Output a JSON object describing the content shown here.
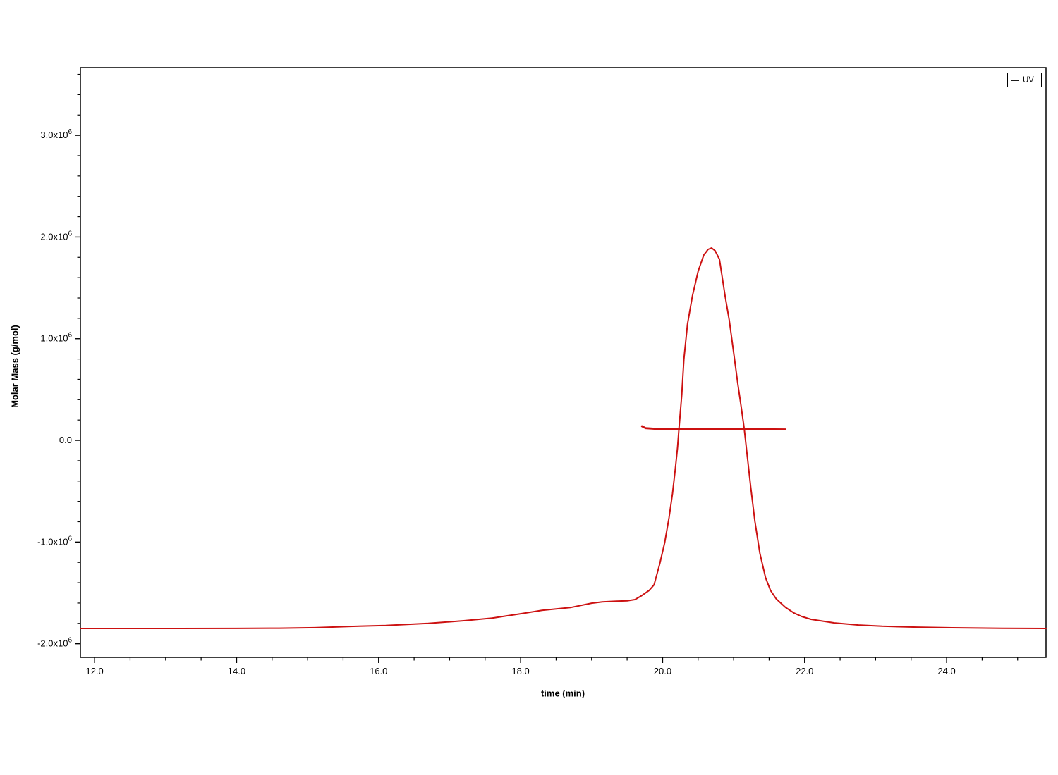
{
  "chart_data": {
    "type": "line",
    "title": "",
    "xlabel": "time (min)",
    "ylabel": "Molar Mass (g/mol)",
    "grid": false,
    "background_color": "#ffffff",
    "axis_color": "#000000",
    "legend_position": "top-right",
    "legend_entries": [
      {
        "label": "UV",
        "line_color": "#1a1a1a"
      }
    ],
    "xlim": [
      11.8,
      25.4
    ],
    "y_scale": 1000000,
    "ylim_millions": [
      -2.134,
      3.666
    ],
    "x_major_ticks": [
      {
        "v": 12,
        "label": "12.0"
      },
      {
        "v": 14,
        "label": "14.0"
      },
      {
        "v": 16,
        "label": "16.0"
      },
      {
        "v": 18,
        "label": "18.0"
      },
      {
        "v": 20,
        "label": "20.0"
      },
      {
        "v": 22,
        "label": "22.0"
      },
      {
        "v": 24,
        "label": "24.0"
      }
    ],
    "x_minor_step": 0.5,
    "y_major_ticks": [
      {
        "v_millions": 3.0,
        "label": "3.0x10",
        "exp": "6"
      },
      {
        "v_millions": 2.0,
        "label": "2.0x10",
        "exp": "6"
      },
      {
        "v_millions": 1.0,
        "label": "1.0x10",
        "exp": "6"
      },
      {
        "v_millions": 0.0,
        "label": "0.0",
        "exp": ""
      },
      {
        "v_millions": -1.0,
        "label": "-1.0x10",
        "exp": "6"
      },
      {
        "v_millions": -2.0,
        "label": "-2.0x10",
        "exp": "6"
      }
    ],
    "y_minor_step_millions": 0.2,
    "series": [
      {
        "name": "UV trace",
        "color": "#cc1111",
        "width": 2,
        "points": [
          [
            11.8,
            -1.85
          ],
          [
            13.0,
            -1.85
          ],
          [
            14.0,
            -1.849
          ],
          [
            14.6,
            -1.847
          ],
          [
            15.1,
            -1.842
          ],
          [
            15.6,
            -1.83
          ],
          [
            16.1,
            -1.821
          ],
          [
            16.7,
            -1.8
          ],
          [
            17.2,
            -1.774
          ],
          [
            17.6,
            -1.748
          ],
          [
            18.0,
            -1.705
          ],
          [
            18.3,
            -1.672
          ],
          [
            18.7,
            -1.644
          ],
          [
            19.0,
            -1.601
          ],
          [
            19.15,
            -1.588
          ],
          [
            19.35,
            -1.581
          ],
          [
            19.5,
            -1.578
          ],
          [
            19.61,
            -1.566
          ],
          [
            19.71,
            -1.525
          ],
          [
            19.81,
            -1.476
          ],
          [
            19.88,
            -1.421
          ],
          [
            19.96,
            -1.213
          ],
          [
            20.03,
            -1.005
          ],
          [
            20.09,
            -0.762
          ],
          [
            20.14,
            -0.52
          ],
          [
            20.18,
            -0.277
          ],
          [
            20.21,
            -0.069
          ],
          [
            20.23,
            0.111
          ],
          [
            20.27,
            0.45
          ],
          [
            20.3,
            0.797
          ],
          [
            20.35,
            1.143
          ],
          [
            20.42,
            1.421
          ],
          [
            20.5,
            1.663
          ],
          [
            20.58,
            1.823
          ],
          [
            20.64,
            1.878
          ],
          [
            20.69,
            1.892
          ],
          [
            20.74,
            1.864
          ],
          [
            20.8,
            1.781
          ],
          [
            20.88,
            1.421
          ],
          [
            20.94,
            1.178
          ],
          [
            21.0,
            0.866
          ],
          [
            21.06,
            0.554
          ],
          [
            21.11,
            0.312
          ],
          [
            21.15,
            0.111
          ],
          [
            21.19,
            -0.139
          ],
          [
            21.24,
            -0.45
          ],
          [
            21.3,
            -0.797
          ],
          [
            21.37,
            -1.109
          ],
          [
            21.45,
            -1.351
          ],
          [
            21.52,
            -1.476
          ],
          [
            21.6,
            -1.559
          ],
          [
            21.73,
            -1.642
          ],
          [
            21.85,
            -1.698
          ],
          [
            21.96,
            -1.732
          ],
          [
            22.09,
            -1.76
          ],
          [
            22.42,
            -1.795
          ],
          [
            22.76,
            -1.816
          ],
          [
            23.09,
            -1.828
          ],
          [
            23.58,
            -1.837
          ],
          [
            24.08,
            -1.843
          ],
          [
            24.78,
            -1.848
          ],
          [
            25.4,
            -1.85
          ]
        ]
      },
      {
        "name": "Molar mass across peak",
        "color": "#cc1111",
        "width": 2.8,
        "points": [
          [
            19.71,
            0.139
          ],
          [
            19.76,
            0.12
          ],
          [
            19.9,
            0.113
          ],
          [
            20.4,
            0.111
          ],
          [
            21.0,
            0.111
          ],
          [
            21.4,
            0.109
          ],
          [
            21.73,
            0.108
          ]
        ]
      }
    ]
  }
}
